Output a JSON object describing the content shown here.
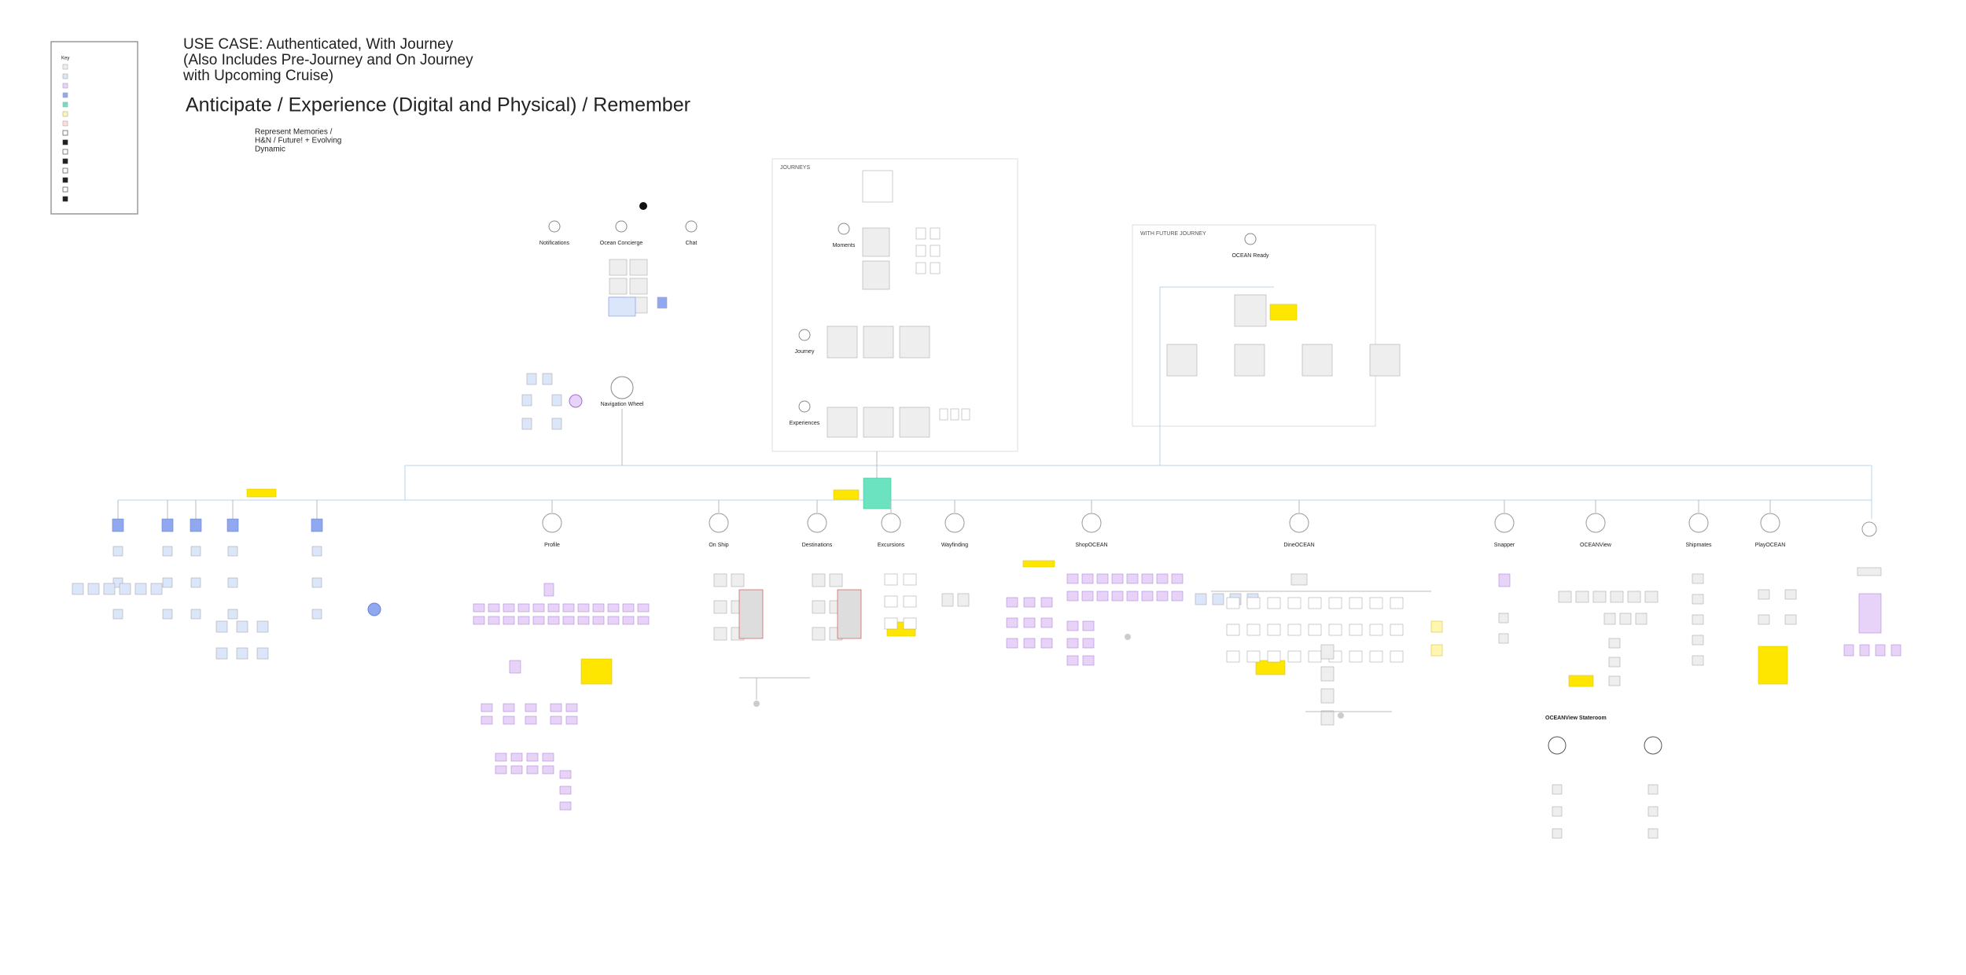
{
  "header": {
    "title_lines": [
      "USE CASE: Authenticated, With Journey",
      "(Also Includes Pre-Journey and On Journey",
      "with Upcoming Cruise)"
    ],
    "subtitle": "Anticipate / Experience (Digital and Physical) / Remember",
    "legend_note": [
      "Represent Memories /",
      "H&N / Future! + Evolving",
      "Dynamic"
    ]
  },
  "key": {
    "title": "Key"
  },
  "groups": {
    "journeys": "JOURNEYS",
    "future": "WITH FUTURE JOURNEY"
  },
  "top_sections": [
    "Notifications",
    "Ocean Concierge",
    "Chat",
    "Navigation Wheel",
    "Moments",
    "Journey",
    "Experiences",
    "OCEAN Ready"
  ],
  "sections": [
    "Profile",
    "On Ship",
    "Destinations",
    "Excursions",
    "Wayfinding",
    "ShopOCEAN",
    "DineOCEAN",
    "Snapper",
    "OCEANView",
    "Shipmates",
    "PlayOCEAN"
  ],
  "stateroom": "OCEANView Stateroom"
}
